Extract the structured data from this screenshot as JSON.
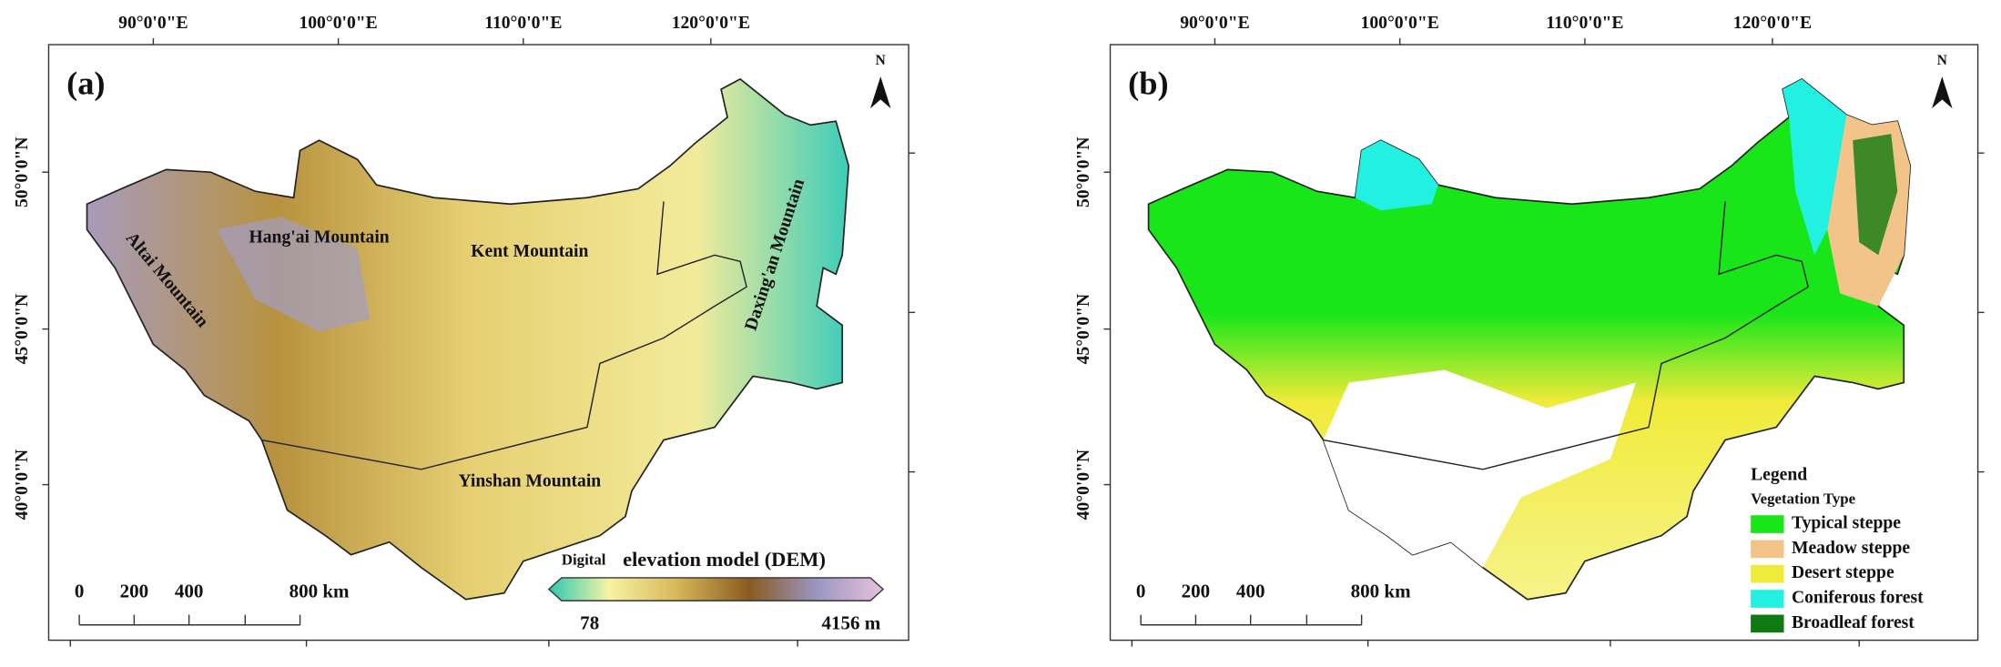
{
  "panels": [
    {
      "label": "(a)",
      "top_labels": [
        "90°0'0\"E",
        "100°0'0\"E",
        "110°0'0\"E",
        "120°0'0\"E"
      ],
      "left_labels": [
        "50°0'0\"N",
        "45°0'0\"N",
        "40°0'0\"N"
      ],
      "north": "N",
      "annotations": [
        "Altai Mountain",
        "Hang'ai Mountain",
        "Kent Mountain",
        "Daxing'an Mountain",
        "Yinshan Mountain"
      ],
      "scale_bar": [
        "0",
        "200",
        "400",
        "800 km"
      ],
      "colorbar": {
        "title_small": "Digital",
        "title": "elevation  model (DEM)",
        "min": "78",
        "max": "4156 m"
      }
    },
    {
      "label": "(b)",
      "top_labels": [
        "90°0'0\"E",
        "100°0'0\"E",
        "110°0'0\"E",
        "120°0'0\"E"
      ],
      "left_labels": [
        "50°0'0\"N",
        "45°0'0\"N",
        "40°0'0\"N"
      ],
      "north": "N",
      "scale_bar": [
        "0",
        "200",
        "400",
        "800 km"
      ],
      "legend": {
        "title": "Legend",
        "subtitle": "Vegetation Type",
        "items": [
          {
            "name": "Typical steppe",
            "color": "#19e619"
          },
          {
            "name": "Meadow steppe",
            "color": "#f2c48a"
          },
          {
            "name": "Desert steppe",
            "color": "#f0eb3a"
          },
          {
            "name": "Coniferous forest",
            "color": "#22f0e0"
          },
          {
            "name": "Broadleaf forest",
            "color": "#0f7a12"
          }
        ]
      }
    }
  ]
}
